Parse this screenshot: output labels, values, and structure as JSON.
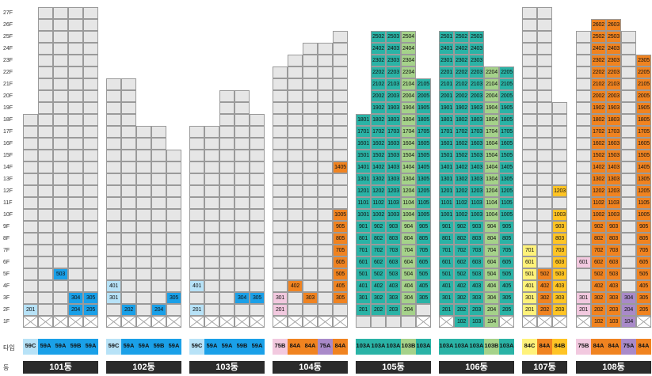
{
  "floor_labels": [
    "1F",
    "2F",
    "3F",
    "4F",
    "5F",
    "6F",
    "7F",
    "8F",
    "9F",
    "10F",
    "11F",
    "12F",
    "13F",
    "14F",
    "15F",
    "16F",
    "17F",
    "18F",
    "19F",
    "20F",
    "21F",
    "22F",
    "23F",
    "24F",
    "25F",
    "26F",
    "27F"
  ],
  "row_labels": {
    "type": "타입",
    "dong": "동"
  },
  "colors": {
    "empty": "#e6e6e6",
    "59A": "#1aa0e8",
    "59B": "#1aa0e8",
    "59C": "#b7e2f7",
    "84A": "#f08320",
    "84B": "#ffc425",
    "84C": "#fff27a",
    "75A": "#a98ac9",
    "75B": "#f2c9df",
    "103A": "#2ab3a6",
    "103B": "#a5d28a",
    "dong_bar": "#2b2b2b"
  },
  "chart_data": {
    "type": "table",
    "title": "",
    "buildings": [
      {
        "dong": "101동",
        "heights": [
          18,
          27,
          27,
          27,
          27
        ],
        "units": [
          [
            "2F",
            0,
            "201",
            "59C"
          ],
          [
            "2F",
            3,
            "204",
            "59B"
          ],
          [
            "2F",
            4,
            "205",
            "59A"
          ],
          [
            "3F",
            3,
            "304",
            "59B"
          ],
          [
            "3F",
            4,
            "305",
            "59A"
          ],
          [
            "5F",
            2,
            "503",
            "59A"
          ]
        ],
        "types": [
          "59C",
          "59A",
          "59A",
          "59B",
          "59A"
        ],
        "none": [
          0,
          1,
          2,
          3,
          4
        ]
      },
      {
        "dong": "102동",
        "heights": [
          21,
          21,
          17,
          17,
          15
        ],
        "units": [
          [
            "2F",
            1,
            "202",
            "59A"
          ],
          [
            "2F",
            3,
            "204",
            "59B"
          ],
          [
            "3F",
            0,
            "301",
            "59C"
          ],
          [
            "3F",
            4,
            "305",
            "59A"
          ],
          [
            "4F",
            0,
            "401",
            "59C"
          ]
        ],
        "types": [
          "59C",
          "59A",
          "59A",
          "59B",
          "59A"
        ],
        "none": [
          0,
          1,
          2,
          3,
          4
        ]
      },
      {
        "dong": "103동",
        "heights": [
          17,
          17,
          20,
          20,
          18
        ],
        "units": [
          [
            "2F",
            0,
            "201",
            "59C"
          ],
          [
            "3F",
            3,
            "304",
            "59B"
          ],
          [
            "3F",
            4,
            "305",
            "59A"
          ],
          [
            "4F",
            0,
            "401",
            "59C"
          ]
        ],
        "types": [
          "59C",
          "59A",
          "59A",
          "59B",
          "59A"
        ],
        "none": [
          0,
          1,
          2,
          3,
          4
        ]
      },
      {
        "dong": "104동",
        "heights": [
          22,
          23,
          24,
          24,
          25
        ],
        "units": [
          [
            "2F",
            0,
            "201",
            "75B"
          ],
          [
            "3F",
            0,
            "301",
            "75B"
          ],
          [
            "3F",
            2,
            "303",
            "84A"
          ],
          [
            "3F",
            4,
            "305",
            "84A"
          ],
          [
            "4F",
            1,
            "402",
            "84A"
          ],
          [
            "4F",
            4,
            "405",
            "84A"
          ],
          [
            "5F",
            4,
            "505",
            "84A"
          ],
          [
            "6F",
            4,
            "605",
            "84A"
          ],
          [
            "7F",
            4,
            "705",
            "84A"
          ],
          [
            "8F",
            4,
            "805",
            "84A"
          ],
          [
            "9F",
            4,
            "905",
            "84A"
          ],
          [
            "10F",
            4,
            "1005",
            "84A"
          ],
          [
            "14F",
            4,
            "1405",
            "84A"
          ]
        ],
        "types": [
          "75B",
          "84A",
          "84A",
          "75A",
          "84A"
        ],
        "none": [
          0,
          1,
          2,
          3,
          4
        ]
      },
      {
        "dong": "105동",
        "heights": [
          18,
          25,
          25,
          25,
          21
        ],
        "units": "tower",
        "types": [
          "103A",
          "103A",
          "103A",
          "103B",
          "103A"
        ],
        "none": [
          4
        ],
        "startFloors": [
          2,
          2,
          2,
          2,
          3
        ],
        "bCol": 3
      },
      {
        "dong": "106동",
        "heights": [
          25,
          25,
          25,
          22,
          22
        ],
        "units": "tower",
        "types": [
          "103A",
          "103A",
          "103A",
          "103B",
          "103A"
        ],
        "none": [
          0,
          4
        ],
        "startFloors": [
          2,
          1,
          1,
          1,
          2
        ],
        "bCol": 3
      },
      {
        "dong": "107동",
        "heights": [
          27,
          27,
          19
        ],
        "units": [
          [
            "2F",
            0,
            "201",
            "84C"
          ],
          [
            "2F",
            1,
            "202",
            "84A"
          ],
          [
            "2F",
            2,
            "203",
            "84B"
          ],
          [
            "3F",
            0,
            "301",
            "84C"
          ],
          [
            "3F",
            1,
            "302",
            "84A"
          ],
          [
            "3F",
            2,
            "303",
            "84B"
          ],
          [
            "4F",
            0,
            "401",
            "84C"
          ],
          [
            "4F",
            1,
            "402",
            "84A"
          ],
          [
            "4F",
            2,
            "403",
            "84B"
          ],
          [
            "5F",
            0,
            "501",
            "84C"
          ],
          [
            "5F",
            1,
            "502",
            "84A"
          ],
          [
            "5F",
            2,
            "503",
            "84B"
          ],
          [
            "6F",
            0,
            "601",
            "84C"
          ],
          [
            "6F",
            2,
            "603",
            "84B"
          ],
          [
            "7F",
            0,
            "701",
            "84C"
          ],
          [
            "7F",
            2,
            "703",
            "84B"
          ],
          [
            "8F",
            2,
            "803",
            "84B"
          ],
          [
            "9F",
            2,
            "903",
            "84B"
          ],
          [
            "10F",
            2,
            "1003",
            "84B"
          ],
          [
            "12F",
            2,
            "1203",
            "84B"
          ]
        ],
        "types": [
          "84C",
          "84A",
          "84B"
        ],
        "none": [
          0,
          1,
          2
        ]
      },
      {
        "dong": "108동",
        "heights": [
          25,
          26,
          26,
          25,
          23
        ],
        "units": "t108",
        "types": [
          "75B",
          "84A",
          "84A",
          "75A",
          "84A"
        ],
        "none": [
          0,
          4
        ]
      }
    ]
  },
  "labels": {
    "r105": [
      "201",
      "202",
      "203",
      "204",
      "",
      "301",
      "302",
      "303",
      "304",
      "305"
    ],
    "r106": [
      "",
      "102",
      "103",
      "104"
    ]
  }
}
